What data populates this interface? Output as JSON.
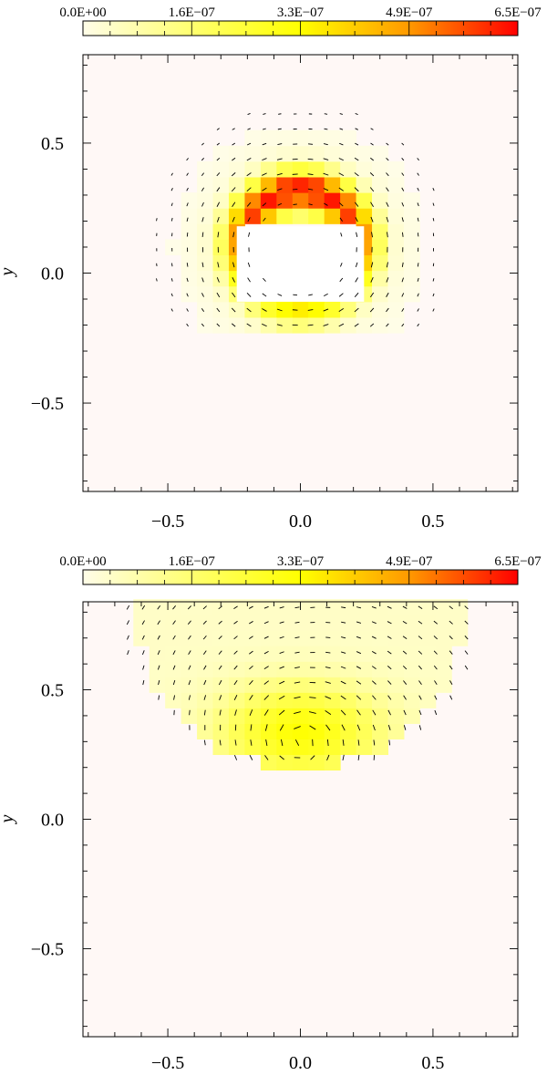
{
  "chart_data": [
    {
      "type": "heatmap",
      "title": "",
      "xlabel": "",
      "ylabel": "y",
      "xlim": [
        -0.82,
        0.82
      ],
      "ylim": [
        -0.84,
        0.84
      ],
      "xticks": [
        -0.5,
        0.0,
        0.5
      ],
      "xtick_labels": [
        "−0.5",
        "0.0",
        "0.5"
      ],
      "yticks": [
        0.5,
        0.0,
        -0.5
      ],
      "ytick_labels": [
        "0.5",
        "0.0",
        "−0.5"
      ],
      "colorbar": {
        "range": [
          0.0,
          6.5e-07
        ],
        "tick_labels": [
          "0.0E+00",
          "1.6E−07",
          "3.3E−07",
          "4.9E−07",
          "6.5E−07"
        ],
        "colors": [
          "#fffde8",
          "#ffff60",
          "#ffff00",
          "#ff8c00",
          "#ff0000"
        ]
      },
      "background_color": "#fff8f6",
      "field": {
        "kind": "ring",
        "center": [
          0.0,
          0.1
        ],
        "radius": 0.22,
        "width": 0.075,
        "peak": 6.2e-07,
        "halo_radius": 0.48,
        "halo_peak": 6e-08,
        "hole": {
          "x": [
            -0.2,
            0.2
          ],
          "y": [
            -0.11,
            0.18
          ]
        },
        "mask_bottom": -0.22
      },
      "vectors": {
        "kind": "ring",
        "x_range": [
          -0.6,
          0.6
        ],
        "y_range": [
          -0.2,
          0.8
        ]
      },
      "cell_size": 0.06
    },
    {
      "type": "heatmap",
      "title": "",
      "xlabel": "",
      "ylabel": "y",
      "xlim": [
        -0.82,
        0.82
      ],
      "ylim": [
        -0.84,
        0.84
      ],
      "xticks": [
        -0.5,
        0.0,
        0.5
      ],
      "xtick_labels": [
        "−0.5",
        "0.0",
        "0.5"
      ],
      "yticks": [
        0.5,
        0.0,
        -0.5
      ],
      "ytick_labels": [
        "0.5",
        "0.0",
        "−0.5"
      ],
      "colorbar": {
        "range": [
          0.0,
          6.5e-07
        ],
        "tick_labels": [
          "0.0E+00",
          "1.6E−07",
          "3.3E−07",
          "4.9E−07",
          "6.5E−07"
        ],
        "colors": [
          "#fffde8",
          "#ffff60",
          "#ffff00",
          "#ff8c00",
          "#ff0000"
        ]
      },
      "background_color": "#fff8f6",
      "field": {
        "kind": "cap",
        "center": [
          0.0,
          0.34
        ],
        "sigma_x": 0.2,
        "sigma_y": 0.12,
        "peak": 2.8e-07,
        "halo_peak": 4e-08,
        "mask_bottom": 0.16
      },
      "vectors": {
        "kind": "cap",
        "x_range": [
          -0.65,
          0.65
        ],
        "y_range": [
          0.18,
          0.82
        ]
      },
      "cell_size": 0.06
    }
  ]
}
